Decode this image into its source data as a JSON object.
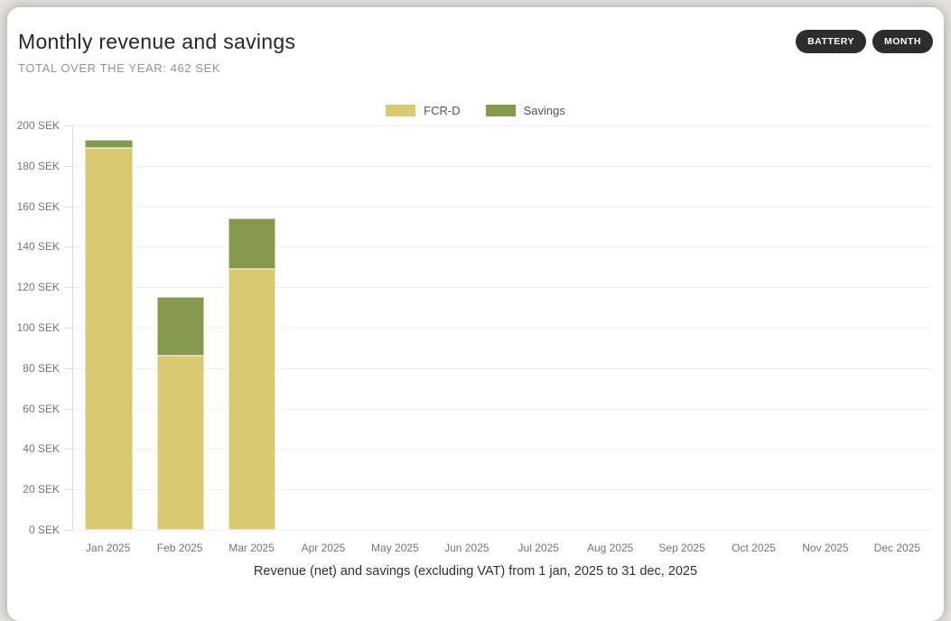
{
  "page": {
    "background_color": "#e5e3e0",
    "card_background_color": "#ffffff"
  },
  "header": {
    "title": "Monthly revenue and savings",
    "subtitle": "TOTAL OVER THE YEAR: 462 SEK",
    "buttons": [
      {
        "label": "BATTERY"
      },
      {
        "label": "MONTH"
      }
    ],
    "button_color": "#2d2d2d"
  },
  "chart_data": {
    "type": "bar",
    "stacked": true,
    "title": "Monthly revenue and savings",
    "unit": "SEK",
    "categories": [
      "Jan 2025",
      "Feb 2025",
      "Mar 2025",
      "Apr 2025",
      "May 2025",
      "Jun 2025",
      "Jul 2025",
      "Aug 2025",
      "Sep 2025",
      "Oct 2025",
      "Nov 2025",
      "Dec 2025"
    ],
    "series": [
      {
        "name": "FCR-D",
        "color": "#d8c971",
        "values": [
          189,
          86,
          129,
          0,
          0,
          0,
          0,
          0,
          0,
          0,
          0,
          0
        ]
      },
      {
        "name": "Savings",
        "color": "#84994d",
        "values": [
          4,
          29,
          25,
          0,
          0,
          0,
          0,
          0,
          0,
          0,
          0,
          0
        ]
      }
    ],
    "totals_by_month": [
      193,
      115,
      154,
      0,
      0,
      0,
      0,
      0,
      0,
      0,
      0,
      0
    ],
    "total_over_year": 462,
    "xlabel": "",
    "ylabel": "",
    "ylim": [
      0,
      200
    ],
    "ytick_step": 20,
    "ytick_suffix": " SEK",
    "grid": true,
    "legend_position": "top",
    "caption": "Revenue (net) and savings (excluding VAT) from 1 jan, 2025 to 31 dec, 2025"
  }
}
